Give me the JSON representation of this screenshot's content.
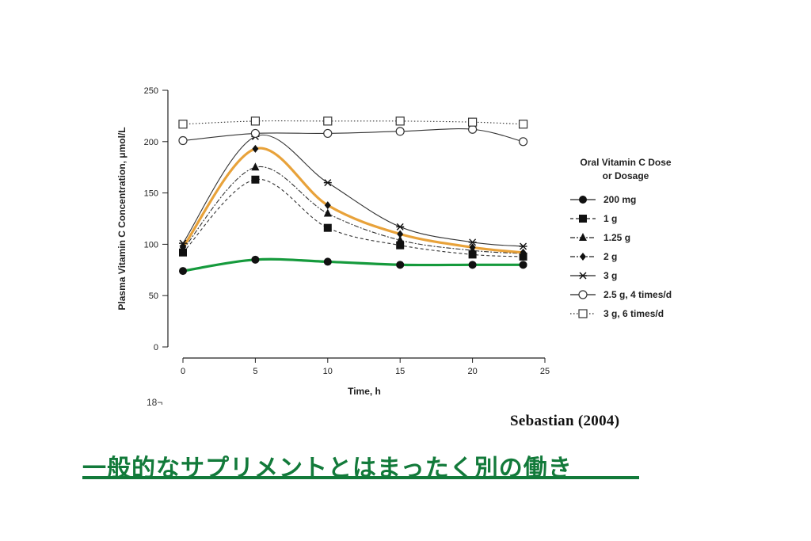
{
  "chart_data": {
    "type": "line",
    "xlabel": "Time, h",
    "ylabel": "Plasma Vitamin C Concentration, μmol/L",
    "xlim": [
      0,
      25
    ],
    "ylim": [
      0,
      250
    ],
    "x_ticks": [
      0,
      5,
      10,
      15,
      20,
      25
    ],
    "y_ticks": [
      0,
      50,
      100,
      150,
      200,
      250
    ],
    "grid": false,
    "legend": {
      "title_line1": "Oral Vitamin C Dose",
      "title_line2": "or Dosage",
      "position": "right"
    },
    "series": [
      {
        "name": "200 mg",
        "marker": "filled-circle",
        "line": "solid",
        "color": "#159a3c",
        "x": [
          0,
          5,
          10,
          15,
          20,
          23.5
        ],
        "y": [
          74,
          85,
          83,
          80,
          80,
          80
        ]
      },
      {
        "name": "1 g",
        "marker": "filled-square",
        "line": "dashed",
        "color": "#333333",
        "x": [
          0,
          5,
          10,
          15,
          20,
          23.5
        ],
        "y": [
          92,
          163,
          116,
          99,
          90,
          88
        ]
      },
      {
        "name": "1.25 g",
        "marker": "filled-triangle",
        "line": "dash-dot",
        "color": "#333333",
        "x": [
          0,
          5,
          10,
          15,
          20,
          23.5
        ],
        "y": [
          95,
          175,
          130,
          104,
          94,
          91
        ]
      },
      {
        "name": "2 g",
        "marker": "filled-diamond",
        "line": "dash-dot",
        "color": "#e8a23a",
        "x": [
          0,
          5,
          10,
          15,
          20,
          23.5
        ],
        "y": [
          97,
          193,
          138,
          110,
          97,
          92
        ]
      },
      {
        "name": "3 g",
        "marker": "asterisk",
        "line": "solid",
        "color": "#333333",
        "x": [
          0,
          5,
          10,
          15,
          20,
          23.5
        ],
        "y": [
          101,
          205,
          160,
          117,
          102,
          98
        ]
      },
      {
        "name": "2.5 g, 4 times/d",
        "marker": "open-circle",
        "line": "solid",
        "color": "#333333",
        "x": [
          0,
          5,
          10,
          15,
          20,
          23.5
        ],
        "y": [
          201,
          208,
          208,
          210,
          212,
          200
        ]
      },
      {
        "name": "3 g, 6 times/d",
        "marker": "open-square",
        "line": "dotted",
        "color": "#333333",
        "x": [
          0,
          5,
          10,
          15,
          20,
          23.5
        ],
        "y": [
          217,
          220,
          220,
          220,
          219,
          217
        ]
      }
    ]
  },
  "footnote": "18¬",
  "reference": "Sebastian (2004)",
  "headline": "一般的なサプリメントとはまったく別の働き",
  "headline_color": "#127a3a"
}
